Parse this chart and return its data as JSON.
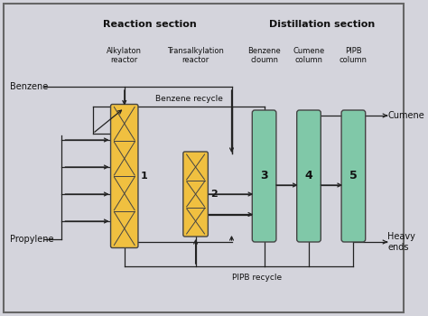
{
  "background_color": "#d4d4dc",
  "border_color": "#666666",
  "title_reaction": "Reaction section",
  "title_distillation": "Distillation section",
  "reactor1_label": "Alkylaton\nreactor",
  "reactor2_label": "Transalkylation\nreactor",
  "col3_label": "Benzene\ncloumn",
  "col4_label": "Cumene\ncolumn",
  "col5_label": "PIPB\ncolumn",
  "equipment_color_reactor": "#f0c040",
  "equipment_color_column": "#80c8a8",
  "line_color": "#222222",
  "text_color": "#111111",
  "benzene_recycle_label": "Benzene recycle",
  "pipb_recycle_label": "PIPB recycle",
  "feed_benzene": "Benzene",
  "feed_propylene": "Propylene",
  "product_cumene": "Cumene",
  "product_heavy": "Heavy\nends",
  "figsize": [
    4.74,
    3.5
  ],
  "dpi": 100
}
